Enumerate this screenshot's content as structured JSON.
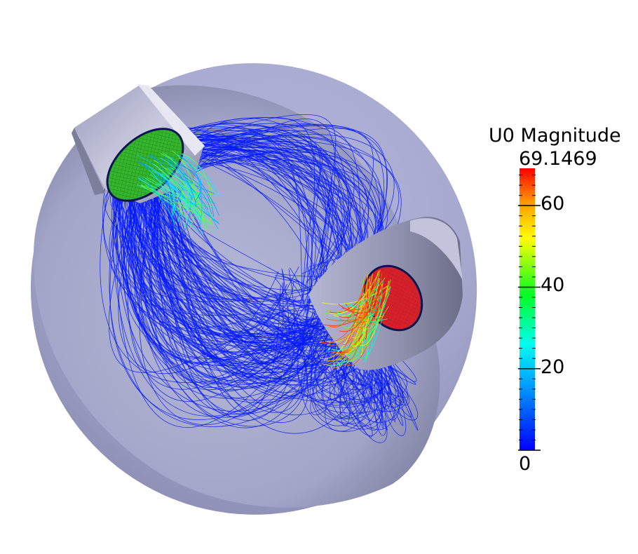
{
  "legend": {
    "title": "U0 Magnitude",
    "max_label": "69.1469",
    "ticks": [
      {
        "label": "60",
        "value": 60
      },
      {
        "label": "40",
        "value": 40
      },
      {
        "label": "20",
        "value": 20
      },
      {
        "label": "0",
        "value": 0
      }
    ],
    "range": [
      0,
      69.1469
    ],
    "colormap": [
      "#0000ff",
      "#00ffff",
      "#00ff00",
      "#ffff00",
      "#ff0000"
    ]
  },
  "scene": {
    "shell_color": "#a9abd2",
    "inlet_color": "#2fa82b",
    "outlet_color": "#d8202a",
    "streamline_color": "#0018ff"
  }
}
